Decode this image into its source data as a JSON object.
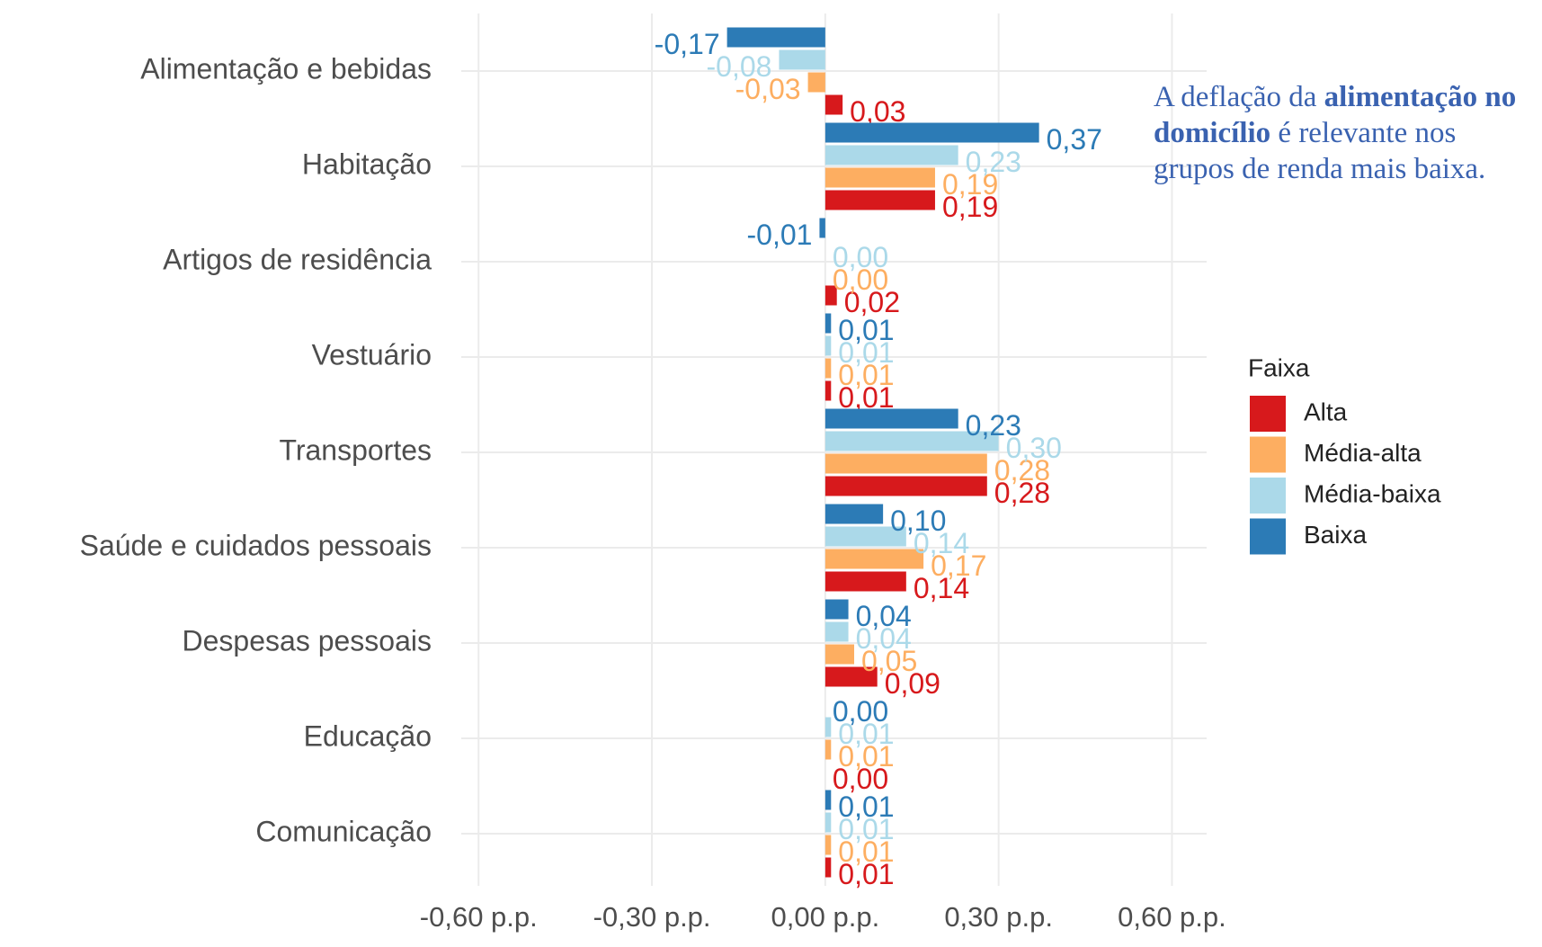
{
  "chart_data": {
    "type": "hbar",
    "categories": [
      "Alimentação e bebidas",
      "Habitação",
      "Artigos de residência",
      "Vestuário",
      "Transportes",
      "Saúde e cuidados pessoais",
      "Despesas pessoais",
      "Educação",
      "Comunicação"
    ],
    "series": [
      {
        "name": "Alta",
        "color": "#d7191c",
        "values": [
          0.03,
          0.19,
          0.02,
          0.01,
          0.28,
          0.14,
          0.09,
          0.0,
          0.01
        ],
        "value_labels": [
          "0,03",
          "0,19",
          "0,02",
          "0,01",
          "0,28",
          "0,14",
          "0,09",
          "0,00",
          "0,01"
        ]
      },
      {
        "name": "Média-alta",
        "color": "#fdae61",
        "values": [
          -0.03,
          0.19,
          0.0,
          0.01,
          0.28,
          0.17,
          0.05,
          0.01,
          0.01
        ],
        "value_labels": [
          "-0,03",
          "0,19",
          "0,00",
          "0,01",
          "0,28",
          "0,17",
          "0,05",
          "0,01",
          "0,01"
        ]
      },
      {
        "name": "Média-baixa",
        "color": "#abd9e9",
        "values": [
          -0.08,
          0.23,
          0.0,
          0.01,
          0.3,
          0.14,
          0.04,
          0.01,
          0.01
        ],
        "value_labels": [
          "-0,08",
          "0,23",
          "0,00",
          "0,01",
          "0,30",
          "0,14",
          "0,04",
          "0,01",
          "0,01"
        ]
      },
      {
        "name": "Baixa",
        "color": "#2c7bb6",
        "values": [
          -0.17,
          0.37,
          -0.01,
          0.01,
          0.23,
          0.1,
          0.04,
          0.0,
          0.01
        ],
        "value_labels": [
          "-0,17",
          "0,37",
          "-0,01",
          "0,01",
          "0,23",
          "0,10",
          "0,04",
          "0,00",
          "0,01"
        ]
      }
    ],
    "xlim": [
      -0.63,
      0.66
    ],
    "xticks": [
      {
        "value": -0.6,
        "label": "-0,60 p.p."
      },
      {
        "value": -0.3,
        "label": "-0,30 p.p."
      },
      {
        "value": 0,
        "label": "0,00 p.p."
      },
      {
        "value": 0.3,
        "label": "0,30 p.p."
      },
      {
        "value": 0.6,
        "label": "0,60 p.p."
      }
    ],
    "grid": true,
    "legend_title": "Faixa",
    "legend": "right",
    "annotation": [
      "A deflação da ",
      "alimentação no domicílio",
      " é relevante nos grupos de renda mais baixa."
    ]
  }
}
